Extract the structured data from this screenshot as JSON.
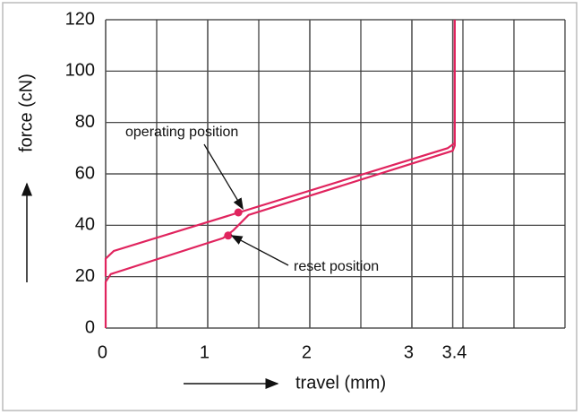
{
  "chart_data": {
    "type": "line",
    "y_label": "force (cN)",
    "x_label": "travel (mm)",
    "xlim": [
      0,
      4.5
    ],
    "ylim": [
      0,
      120
    ],
    "xticks": [
      0,
      1,
      2,
      3,
      3.4
    ],
    "yticks": [
      0,
      20,
      40,
      60,
      80,
      100,
      120
    ],
    "xgrid": [
      0,
      0.5,
      1,
      1.5,
      2,
      2.5,
      3,
      3.5,
      4,
      4.5
    ],
    "grid": true,
    "series": [
      {
        "color": "#e0245e",
        "x": [
          0,
          0,
          0.05,
          1.15,
          1.25,
          1.4,
          3.4,
          3.42,
          3.42
        ],
        "values": [
          0,
          18,
          21,
          35,
          38,
          44,
          69,
          71,
          120
        ]
      },
      {
        "color": "#e0245e",
        "x": [
          0,
          0,
          0.08,
          3.35,
          3.42,
          3.42
        ],
        "values": [
          20,
          27,
          30,
          70,
          72,
          120
        ]
      }
    ],
    "annotations": [
      {
        "text": "operating position",
        "x": 1.3,
        "y": 45
      },
      {
        "text": "reset position",
        "x": 1.2,
        "y": 36
      }
    ]
  }
}
